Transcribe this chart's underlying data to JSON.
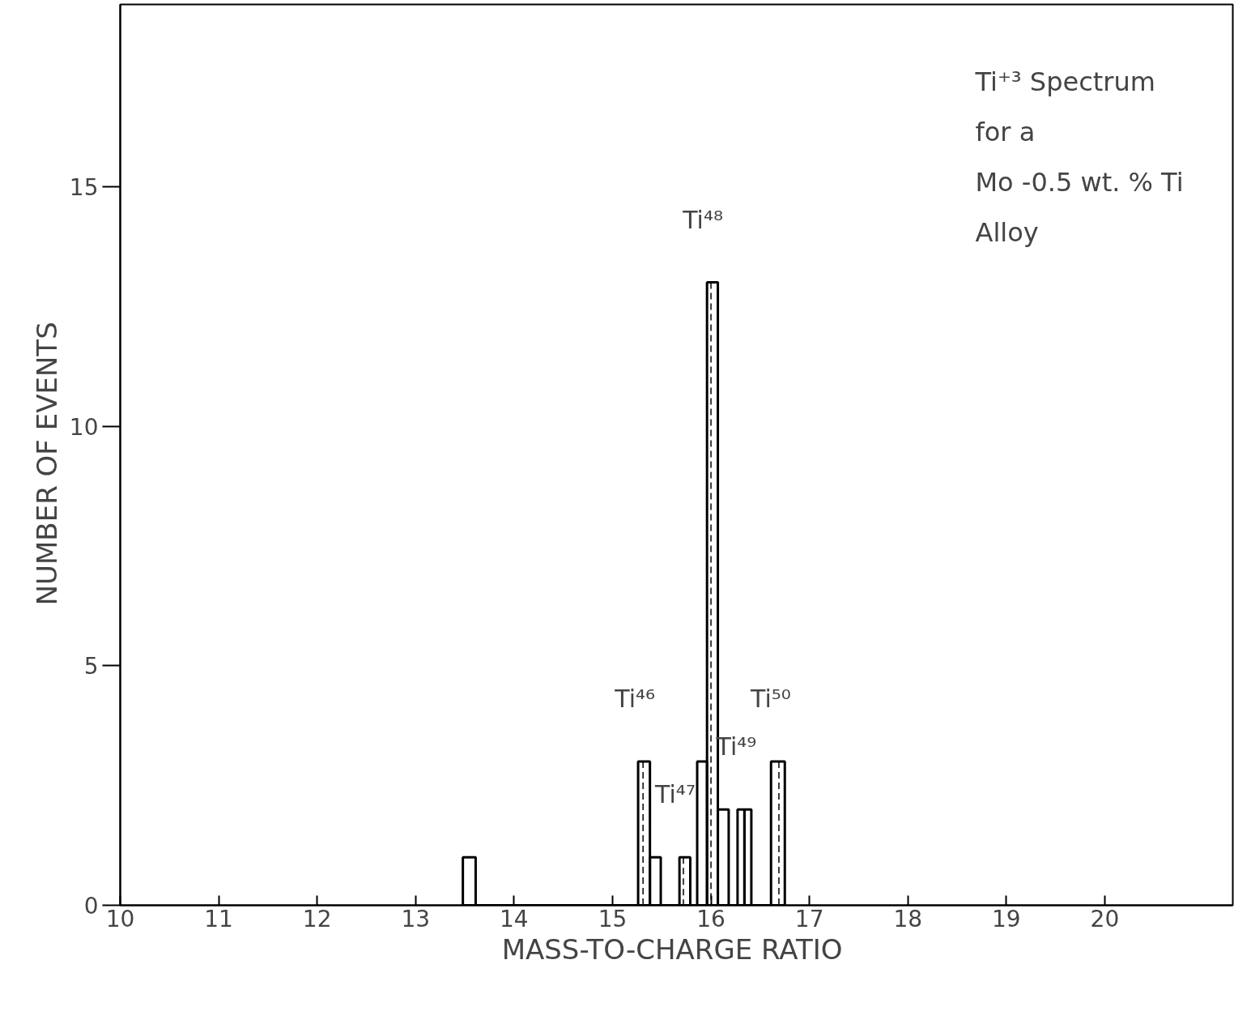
{
  "chart_data": {
    "type": "histogram",
    "xlabel": "MASS-TO-CHARGE  RATIO",
    "ylabel": "NUMBER  OF  EVENTS",
    "bins": [
      13.48,
      13.61,
      15.26,
      15.38,
      15.49,
      15.68,
      15.79,
      15.86,
      15.96,
      16.07,
      16.18,
      16.27,
      16.34,
      16.41,
      16.61,
      16.75
    ],
    "values": [
      1,
      0,
      3,
      1,
      0,
      1,
      0,
      3,
      13,
      2,
      0,
      2,
      2,
      0,
      3
    ],
    "color": "#000000",
    "xlim": [
      10,
      21.3
    ],
    "ylim": [
      0,
      18.8
    ],
    "xticks": [
      10,
      11,
      12,
      13,
      14,
      15,
      16,
      17,
      18,
      19,
      20
    ],
    "yticks": [
      0,
      5,
      10,
      15
    ],
    "grid": false,
    "annotations": [
      {
        "text": "Ti⁴⁶",
        "x": 15.31,
        "y": 3
      },
      {
        "text": "Ti⁴⁷",
        "x": 15.72,
        "y": 1
      },
      {
        "text": "Ti⁴⁸",
        "x": 16.0,
        "y": 13
      },
      {
        "text": "Ti⁴⁹",
        "x": 16.34,
        "y": 2
      },
      {
        "text": "Ti⁵⁰",
        "x": 16.69,
        "y": 3
      },
      "Ti⁺³ Spectrum",
      "for a",
      "Mo -0.5 wt. % Ti",
      "Alloy"
    ]
  }
}
